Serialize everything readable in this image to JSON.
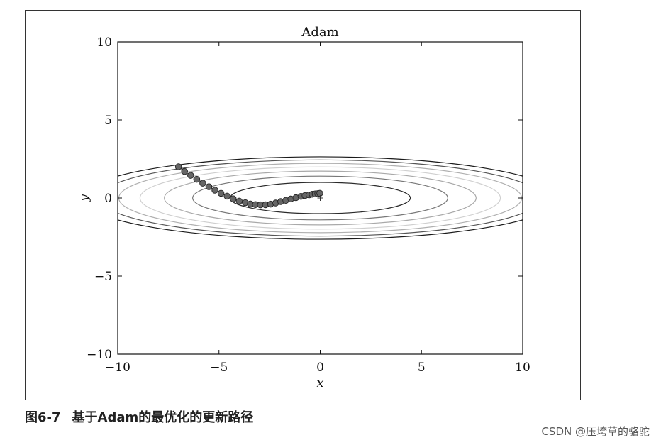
{
  "chart_data": {
    "type": "scatter",
    "title": "Adam",
    "xlabel": "x",
    "ylabel": "y",
    "xlim": [
      -10,
      10
    ],
    "ylim": [
      -10,
      10
    ],
    "x_ticks": [
      {
        "value": -10,
        "label": "−10"
      },
      {
        "value": -5,
        "label": "−5"
      },
      {
        "value": 0,
        "label": "0"
      },
      {
        "value": 5,
        "label": "5"
      },
      {
        "value": 10,
        "label": "10"
      }
    ],
    "y_ticks": [
      {
        "value": -10,
        "label": "−10"
      },
      {
        "value": -5,
        "label": "−5"
      },
      {
        "value": 0,
        "label": "0"
      },
      {
        "value": 5,
        "label": "5"
      },
      {
        "value": 10,
        "label": "10"
      }
    ],
    "grid": false,
    "contour_function": "x^2/20 + y^2",
    "contour_levels": [
      {
        "a": 4.45,
        "b": 1.0,
        "color": "#2b2b2b"
      },
      {
        "a": 6.3,
        "b": 1.4,
        "color": "#777777"
      },
      {
        "a": 7.7,
        "b": 1.72,
        "color": "#a9a9a9"
      },
      {
        "a": 8.9,
        "b": 1.99,
        "color": "#cfcfcf"
      },
      {
        "a": 9.95,
        "b": 2.22,
        "color": "#b0b0b0"
      },
      {
        "a": 10.9,
        "b": 2.44,
        "color": "#555555"
      },
      {
        "a": 11.8,
        "b": 2.64,
        "color": "#1a1a1a"
      }
    ],
    "minimum_marker": {
      "x": 0,
      "y": 0,
      "symbol": "+"
    },
    "path": {
      "name": "",
      "color": "#666666",
      "x": [
        -7.0,
        -6.7,
        -6.4,
        -6.1,
        -5.8,
        -5.5,
        -5.2,
        -4.9,
        -4.6,
        -4.3,
        -4.0,
        -3.7,
        -3.45,
        -3.2,
        -2.95,
        -2.7,
        -2.45,
        -2.2,
        -1.95,
        -1.7,
        -1.45,
        -1.2,
        -0.95,
        -0.75,
        -0.55,
        -0.4,
        -0.25,
        -0.12,
        -0.02
      ],
      "y": [
        2.0,
        1.7,
        1.45,
        1.2,
        0.95,
        0.72,
        0.5,
        0.3,
        0.12,
        -0.05,
        -0.2,
        -0.3,
        -0.38,
        -0.42,
        -0.44,
        -0.43,
        -0.39,
        -0.32,
        -0.23,
        -0.15,
        -0.06,
        0.02,
        0.1,
        0.16,
        0.2,
        0.24,
        0.26,
        0.28,
        0.3
      ]
    }
  },
  "caption": {
    "figure_number": "图6-7",
    "text": "基于Adam的最优化的更新路径"
  },
  "watermark": "CSDN @压垮草的骆驼"
}
